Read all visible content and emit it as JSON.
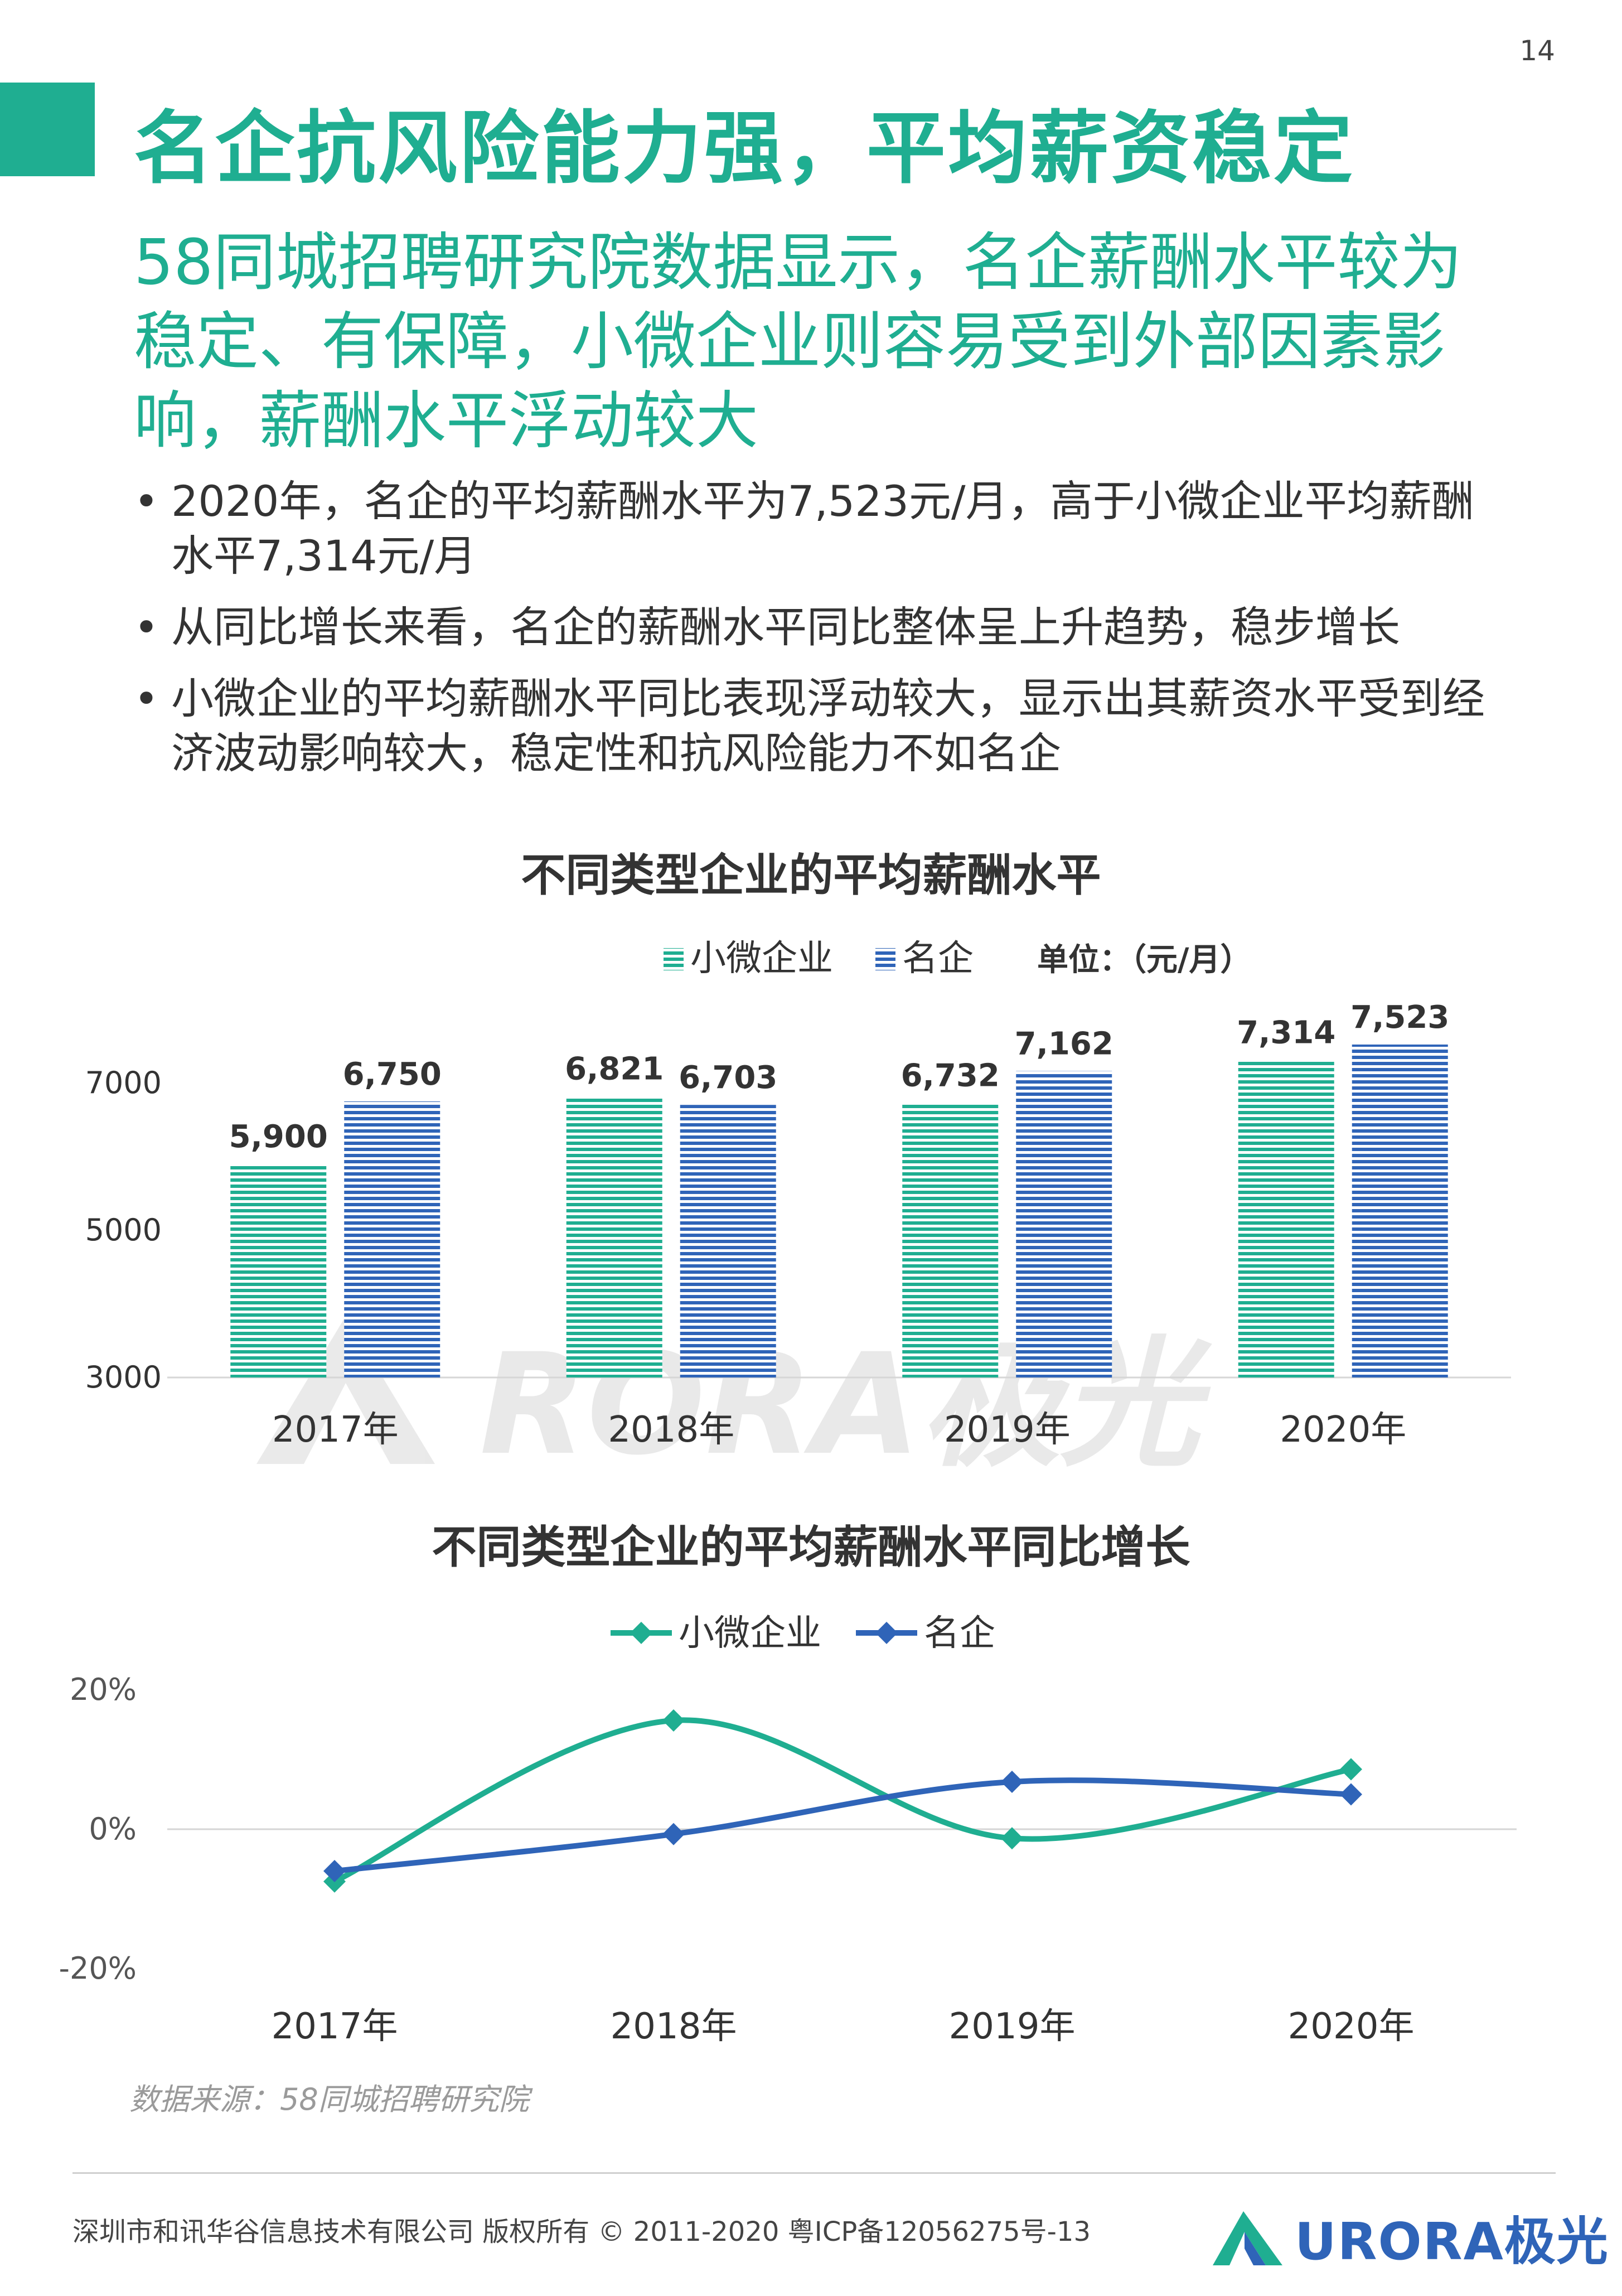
{
  "page": {
    "number": "14",
    "title": "名企抗风险能力强，平均薪资稳定",
    "subtitle": "58同城招聘研究院数据显示，名企薪酬水平较为稳定、有保障，小微企业则容易受到外部因素影响，薪酬水平浮动较大",
    "bullets": [
      "2020年，名企的平均薪酬水平为7,523元/月，高于小微企业平均薪酬水平7,314元/月",
      "从同比增长来看，名企的薪酬水平同比整体呈上升趋势，稳步增长",
      "小微企业的平均薪酬水平同比表现浮动较大，显示出其薪资水平受到经济波动影响较大，稳定性和抗风险能力不如名企"
    ],
    "source": "数据来源：58同城招聘研究院",
    "copyright": "深圳市和讯华谷信息技术有限公司 版权所有 © 2011-2020 粤ICP备12056275号-13",
    "logo_text": "URORA极光",
    "watermark_text": "URORA极光"
  },
  "colors": {
    "title_green": "#1fae91",
    "series_small": "#1fae91",
    "series_big": "#2f64b8"
  },
  "chart_data": [
    {
      "type": "bar",
      "title": "不同类型企业的平均薪酬水平",
      "unit_label": "单位：（元/月）",
      "categories": [
        "2017年",
        "2018年",
        "2019年",
        "2020年"
      ],
      "series": [
        {
          "name": "小微企业",
          "values": [
            5900,
            6821,
            6732,
            7314
          ],
          "labels": [
            "5,900",
            "6,821",
            "6,732",
            "7,314"
          ],
          "color": "#1fae91"
        },
        {
          "name": "名企",
          "values": [
            6750,
            6703,
            7162,
            7523
          ],
          "labels": [
            "6,750",
            "6,703",
            "7,162",
            "7,523"
          ],
          "color": "#2f64b8"
        }
      ],
      "yticks": [
        3000,
        5000,
        7000
      ],
      "ylim": [
        3000,
        8000
      ],
      "legend": "top"
    },
    {
      "type": "line",
      "title": "不同类型企业的平均薪酬水平同比增长",
      "categories": [
        "2017年",
        "2018年",
        "2019年",
        "2020年"
      ],
      "series": [
        {
          "name": "小微企业",
          "values": [
            -7.5,
            15.6,
            -1.3,
            8.6
          ],
          "color": "#1fae91"
        },
        {
          "name": "名企",
          "values": [
            -6,
            -0.7,
            6.8,
            5
          ],
          "color": "#2f64b8"
        }
      ],
      "yticks": [
        -20,
        0,
        20
      ],
      "ytick_labels": [
        "-20%",
        "0%",
        "20%"
      ],
      "ylim": [
        -20,
        20
      ],
      "legend": "top"
    }
  ]
}
